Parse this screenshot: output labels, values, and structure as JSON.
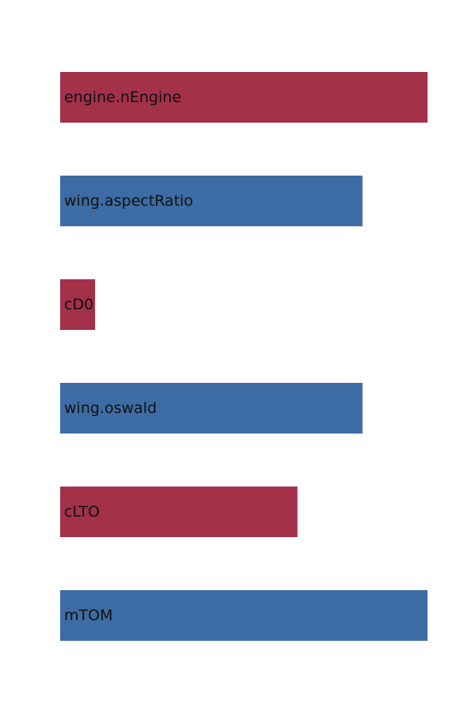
{
  "chart_data": {
    "type": "bar",
    "orientation": "horizontal",
    "categories": [
      "engine.nEngine",
      "wing.aspectRatio",
      "cD0",
      "wing.oswald",
      "cLTO",
      "mTOM"
    ],
    "values": [
      1.0,
      0.823,
      0.095,
      0.823,
      0.646,
      1.0
    ],
    "colors": [
      "#a23149",
      "#3d6ca4",
      "#a23149",
      "#3d6ca4",
      "#a23149",
      "#3d6ca4"
    ],
    "xlim": [
      0,
      1
    ],
    "title": "",
    "xlabel": "",
    "ylabel": "",
    "grid": false,
    "legend": "none"
  }
}
